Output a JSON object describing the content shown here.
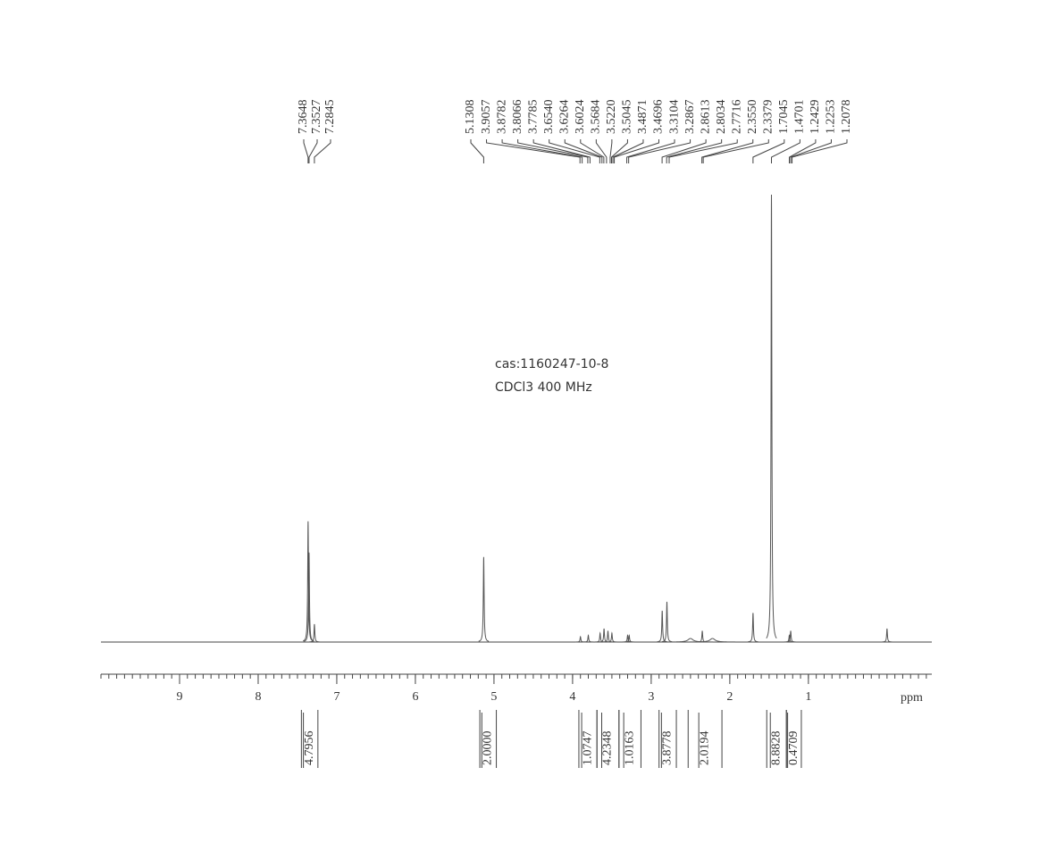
{
  "chart_data": {
    "type": "nmr",
    "annotations": [
      "cas:1160247-10-8",
      "CDCl3   400 MHz"
    ],
    "x_label": "ppm",
    "xlim": [
      10,
      -0.57
    ],
    "xticks": [
      9,
      8,
      7,
      6,
      5,
      4,
      3,
      2,
      1
    ],
    "minor_tick_step": 0.1,
    "ylim": [
      0,
      100
    ],
    "color": "#555555",
    "peak_labels": {
      "values": [
        7.3648,
        7.3527,
        7.2845,
        5.1308,
        3.9057,
        3.8782,
        3.8066,
        3.7785,
        3.654,
        3.6264,
        3.6024,
        3.5684,
        3.522,
        3.5045,
        3.4871,
        3.4696,
        3.3104,
        3.2867,
        2.8613,
        2.8034,
        2.7716,
        2.355,
        2.3379,
        1.7045,
        1.4701,
        1.2429,
        1.2253,
        1.2078
      ],
      "value_labels": [
        "7.3648",
        "7.3527",
        "7.2845",
        "5.1308",
        "3.9057",
        "3.8782",
        "3.8066",
        "3.7785",
        "3.6540",
        "3.6264",
        "3.6024",
        "3.5684",
        "3.5220",
        "3.5045",
        "3.4871",
        "3.4696",
        "3.3104",
        "3.2867",
        "2.8613",
        "2.8034",
        "2.7716",
        "2.3550",
        "2.3379",
        "1.7045",
        "1.4701",
        "1.2429",
        "1.2253",
        "1.2078"
      ]
    },
    "spectrum": {
      "x": [
        7.3648,
        7.3527,
        7.2845,
        5.1308,
        3.9,
        3.8,
        3.65,
        3.6,
        3.55,
        3.5,
        3.3,
        3.28,
        2.86,
        2.8,
        2.5,
        2.35,
        2.22,
        1.7045,
        1.4701,
        1.2429,
        1.2253,
        0
      ],
      "values": [
        27,
        20,
        4,
        19,
        1.2,
        1.5,
        2,
        3,
        2.5,
        2,
        1.5,
        1.5,
        7,
        9,
        0.8,
        2.5,
        0.8,
        6.5,
        100,
        1.5,
        2.5,
        3
      ]
    },
    "integrals": {
      "values": [
        4.7956,
        2,
        1.0747,
        4.2348,
        1.0163,
        3.8778,
        2.0194,
        8.8828,
        0.4709
      ],
      "value_labels": [
        "4.7956",
        "2.0000",
        "1.0747",
        "4.2348",
        "1.0163",
        "3.8778",
        "2.0194",
        "8.8828",
        "0.4709"
      ],
      "ranges": [
        [
          7.45,
          7.24
        ],
        [
          5.18,
          4.97
        ],
        [
          3.92,
          3.69
        ],
        [
          3.69,
          3.41
        ],
        [
          3.41,
          3.13
        ],
        [
          2.9,
          2.68
        ],
        [
          2.53,
          2.1
        ],
        [
          1.53,
          1.28
        ],
        [
          1.28,
          1.09
        ]
      ]
    }
  }
}
